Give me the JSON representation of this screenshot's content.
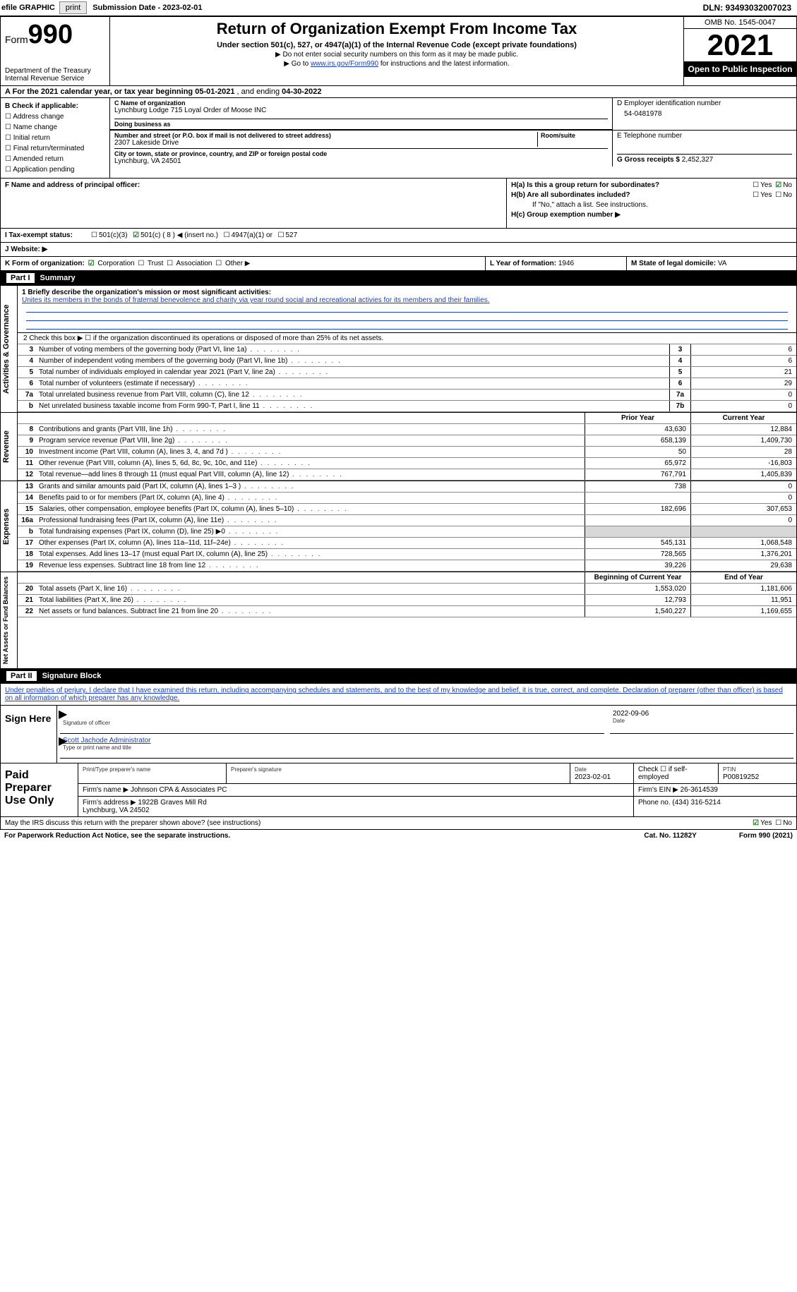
{
  "topbar": {
    "efile_label": "efile GRAPHIC",
    "print_btn": "print",
    "submission_label": "Submission Date - 2023-02-01",
    "dln": "DLN: 93493032007023"
  },
  "header": {
    "form_word": "Form",
    "form_num": "990",
    "dept": "Department of the Treasury\nInternal Revenue Service",
    "title": "Return of Organization Exempt From Income Tax",
    "subtitle": "Under section 501(c), 527, or 4947(a)(1) of the Internal Revenue Code (except private foundations)",
    "note1": "Do not enter social security numbers on this form as it may be made public.",
    "note2_pre": "Go to ",
    "note2_link": "www.irs.gov/Form990",
    "note2_post": " for instructions and the latest information.",
    "omb": "OMB No. 1545-0047",
    "year": "2021",
    "open_pub": "Open to Public Inspection"
  },
  "rowA": {
    "text_pre": "A For the 2021 calendar year, or tax year beginning ",
    "begin": "05-01-2021",
    "mid": " , and ending ",
    "end": "04-30-2022"
  },
  "colB": {
    "label": "B Check if applicable:",
    "items": [
      "Address change",
      "Name change",
      "Initial return",
      "Final return/terminated",
      "Amended return",
      "Application pending"
    ]
  },
  "colC": {
    "name_label": "C Name of organization",
    "name": "Lynchburg Lodge 715 Loyal Order of Moose INC",
    "dba_label": "Doing business as",
    "dba": "",
    "addr_label": "Number and street (or P.O. box if mail is not delivered to street address)",
    "room_label": "Room/suite",
    "addr": "2307 Lakeside Drive",
    "city_label": "City or town, state or province, country, and ZIP or foreign postal code",
    "city": "Lynchburg, VA  24501"
  },
  "colD": {
    "ein_label": "D Employer identification number",
    "ein": "54-0481978",
    "phone_label": "E Telephone number",
    "phone": "",
    "gross_label": "G Gross receipts $",
    "gross": "2,452,327"
  },
  "rowF": {
    "label": "F  Name and address of principal officer:",
    "value": ""
  },
  "rowH": {
    "ha_label": "H(a)  Is this a group return for subordinates?",
    "ha_yes": "Yes",
    "ha_no": "No",
    "hb_label": "H(b)  Are all subordinates included?",
    "hb_yes": "Yes",
    "hb_no": "No",
    "hb_note": "If \"No,\" attach a list. See instructions.",
    "hc_label": "H(c)  Group exemption number ▶"
  },
  "rowI": {
    "label": "I  Tax-exempt status:",
    "opts": [
      "501(c)(3)",
      "501(c) ( 8 ) ◀ (insert no.)",
      "4947(a)(1) or",
      "527"
    ]
  },
  "rowJ": {
    "label": "J  Website: ▶",
    "value": ""
  },
  "rowK": {
    "label": "K Form of organization:",
    "opts": [
      "Corporation",
      "Trust",
      "Association",
      "Other ▶"
    ],
    "l_label": "L Year of formation:",
    "l_val": "1946",
    "m_label": "M State of legal domicile:",
    "m_val": "VA"
  },
  "part1": {
    "title": "Part I",
    "name": "Summary",
    "line1_label": "1   Briefly describe the organization's mission or most significant activities:",
    "line1_text": "Unites its members in the bonds of fraternal benevolence and charity via year round social and recreational activies for its members and their families.",
    "line2": "2   Check this box ▶ ☐  if the organization discontinued its operations or disposed of more than 25% of its net assets.",
    "vtabs": [
      "Activities & Governance",
      "Revenue",
      "Expenses",
      "Net Assets or Fund Balances"
    ],
    "gov_rows": [
      {
        "n": "3",
        "d": "Number of voting members of the governing body (Part VI, line 1a)",
        "box": "3",
        "v": "6"
      },
      {
        "n": "4",
        "d": "Number of independent voting members of the governing body (Part VI, line 1b)",
        "box": "4",
        "v": "6"
      },
      {
        "n": "5",
        "d": "Total number of individuals employed in calendar year 2021 (Part V, line 2a)",
        "box": "5",
        "v": "21"
      },
      {
        "n": "6",
        "d": "Total number of volunteers (estimate if necessary)",
        "box": "6",
        "v": "29"
      },
      {
        "n": "7a",
        "d": "Total unrelated business revenue from Part VIII, column (C), line 12",
        "box": "7a",
        "v": "0"
      },
      {
        "n": "b",
        "d": "Net unrelated business taxable income from Form 990-T, Part I, line 11",
        "box": "7b",
        "v": "0"
      }
    ],
    "col_hdr_prior": "Prior Year",
    "col_hdr_curr": "Current Year",
    "rev_rows": [
      {
        "n": "8",
        "d": "Contributions and grants (Part VIII, line 1h)",
        "p": "43,630",
        "c": "12,884"
      },
      {
        "n": "9",
        "d": "Program service revenue (Part VIII, line 2g)",
        "p": "658,139",
        "c": "1,409,730"
      },
      {
        "n": "10",
        "d": "Investment income (Part VIII, column (A), lines 3, 4, and 7d )",
        "p": "50",
        "c": "28"
      },
      {
        "n": "11",
        "d": "Other revenue (Part VIII, column (A), lines 5, 6d, 8c, 9c, 10c, and 11e)",
        "p": "65,972",
        "c": "-16,803"
      },
      {
        "n": "12",
        "d": "Total revenue—add lines 8 through 11 (must equal Part VIII, column (A), line 12)",
        "p": "767,791",
        "c": "1,405,839"
      }
    ],
    "exp_rows": [
      {
        "n": "13",
        "d": "Grants and similar amounts paid (Part IX, column (A), lines 1–3 )",
        "p": "738",
        "c": "0"
      },
      {
        "n": "14",
        "d": "Benefits paid to or for members (Part IX, column (A), line 4)",
        "p": "",
        "c": "0"
      },
      {
        "n": "15",
        "d": "Salaries, other compensation, employee benefits (Part IX, column (A), lines 5–10)",
        "p": "182,696",
        "c": "307,653"
      },
      {
        "n": "16a",
        "d": "Professional fundraising fees (Part IX, column (A), line 11e)",
        "p": "",
        "c": "0"
      },
      {
        "n": "b",
        "d": "Total fundraising expenses (Part IX, column (D), line 25) ▶0",
        "p": "grey",
        "c": "grey"
      },
      {
        "n": "17",
        "d": "Other expenses (Part IX, column (A), lines 11a–11d, 11f–24e)",
        "p": "545,131",
        "c": "1,068,548"
      },
      {
        "n": "18",
        "d": "Total expenses. Add lines 13–17 (must equal Part IX, column (A), line 25)",
        "p": "728,565",
        "c": "1,376,201"
      },
      {
        "n": "19",
        "d": "Revenue less expenses. Subtract line 18 from line 12",
        "p": "39,226",
        "c": "29,638"
      }
    ],
    "col_hdr_begin": "Beginning of Current Year",
    "col_hdr_end": "End of Year",
    "net_rows": [
      {
        "n": "20",
        "d": "Total assets (Part X, line 16)",
        "p": "1,553,020",
        "c": "1,181,606"
      },
      {
        "n": "21",
        "d": "Total liabilities (Part X, line 26)",
        "p": "12,793",
        "c": "11,951"
      },
      {
        "n": "22",
        "d": "Net assets or fund balances. Subtract line 21 from line 20",
        "p": "1,540,227",
        "c": "1,169,655"
      }
    ]
  },
  "part2": {
    "title": "Part II",
    "name": "Signature Block",
    "decl": "Under penalties of perjury, I declare that I have examined this return, including accompanying schedules and statements, and to the best of my knowledge and belief, it is true, correct, and complete. Declaration of preparer (other than officer) is based on all information of which preparer has any knowledge.",
    "sign_here": "Sign Here",
    "sig_officer": "Signature of officer",
    "sig_date": "2022-09-06",
    "date_lbl": "Date",
    "name_title": "Scott Jachode  Administrator",
    "name_title_lbl": "Type or print name and title",
    "paid_label": "Paid Preparer Use Only",
    "prep_name_lbl": "Print/Type preparer's name",
    "prep_sig_lbl": "Preparer's signature",
    "prep_date_lbl": "Date",
    "prep_date": "2023-02-01",
    "check_self": "Check ☐ if self-employed",
    "ptin_lbl": "PTIN",
    "ptin": "P00819252",
    "firm_name_lbl": "Firm's name    ▶",
    "firm_name": "Johnson CPA & Associates PC",
    "firm_ein_lbl": "Firm's EIN ▶",
    "firm_ein": "26-3614539",
    "firm_addr_lbl": "Firm's address ▶",
    "firm_addr": "1922B Graves Mill Rd\nLynchburg, VA  24502",
    "phone_lbl": "Phone no.",
    "phone": "(434) 316-5214",
    "discuss": "May the IRS discuss this return with the preparer shown above? (see instructions)",
    "discuss_yes": "Yes",
    "discuss_no": "No"
  },
  "footer": {
    "pra": "For Paperwork Reduction Act Notice, see the separate instructions.",
    "cat": "Cat. No. 11282Y",
    "form": "Form 990 (2021)"
  },
  "style": {
    "accent": "#1a3fb5",
    "check_green": "#1a7a1a"
  }
}
